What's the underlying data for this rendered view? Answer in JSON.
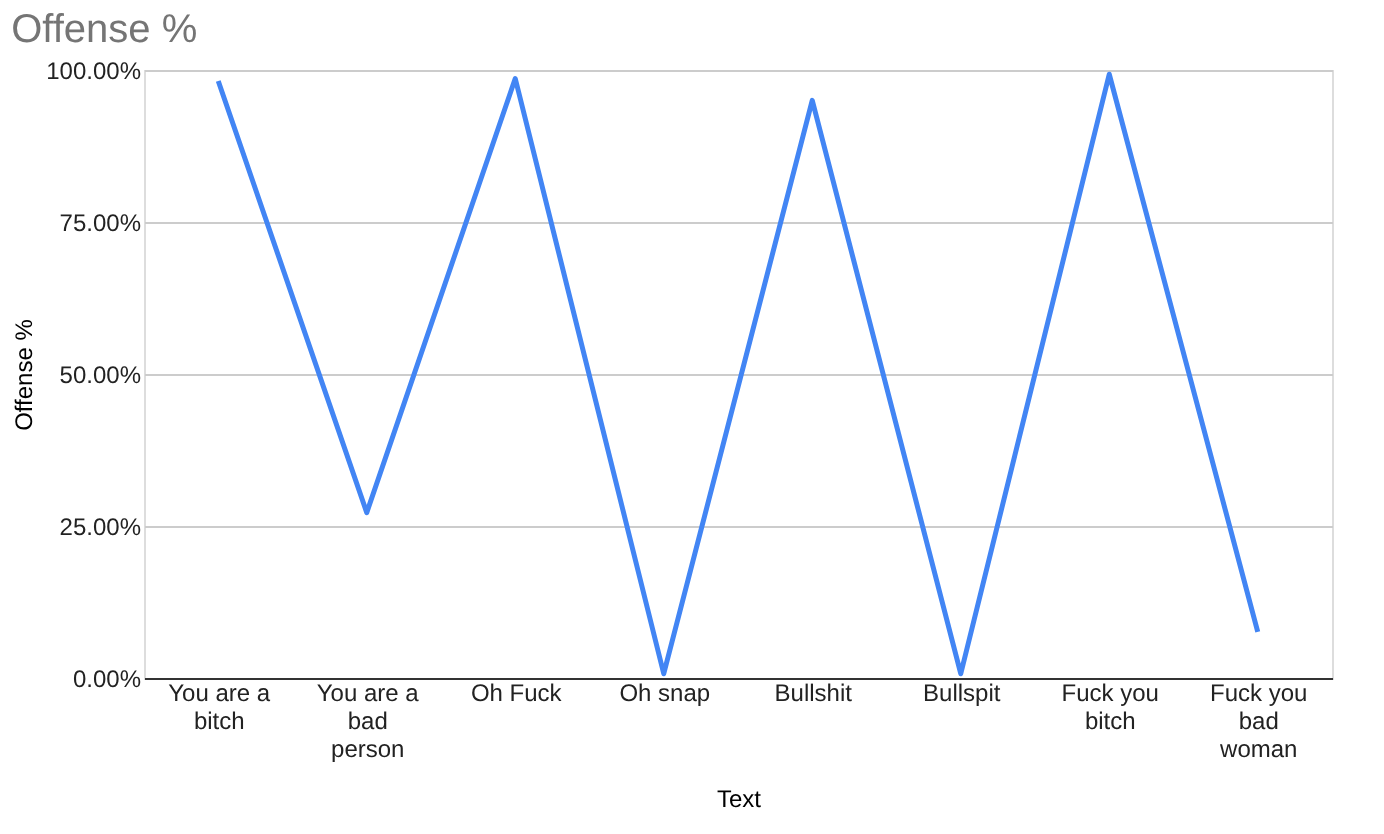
{
  "chart_data": {
    "type": "line",
    "title": "Offense %",
    "xlabel": "Text",
    "ylabel": "Offense %",
    "categories": [
      "You are a\nbitch",
      "You are a\nbad\nperson",
      "Oh Fuck",
      "Oh snap",
      "Bullshit",
      "Bullspit",
      "Fuck you\nbitch",
      "Fuck you\nbad\nwoman"
    ],
    "series": [
      {
        "color": "#4285f4",
        "values": [
          98.2,
          27.2,
          98.6,
          0.7,
          95,
          0.7,
          99.3,
          7.6
        ]
      }
    ],
    "ylim": [
      0,
      100
    ],
    "yticks": [
      {
        "value": 0,
        "label": "0.00%"
      },
      {
        "value": 25,
        "label": "25.00%"
      },
      {
        "value": 50,
        "label": "50.00%"
      },
      {
        "value": 75,
        "label": "75.00%"
      },
      {
        "value": 100,
        "label": "100.00%"
      }
    ],
    "grid": "y",
    "marker": "none",
    "line_style": "solid"
  }
}
